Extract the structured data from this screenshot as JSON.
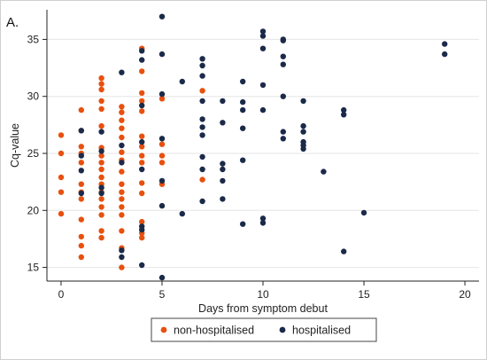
{
  "panel_label": "A.",
  "colors": {
    "non_hospitalised": "#e8500e",
    "hospitalised": "#1b2a49",
    "axis": "#222222",
    "grid": "#e6e6e6"
  },
  "chart_data": {
    "type": "scatter",
    "title": "",
    "xlabel": "Days from symptom debut",
    "ylabel": "Cq-value",
    "xlim": [
      -0.7,
      20.7
    ],
    "ylim": [
      13.8,
      37.6
    ],
    "xticks": [
      0,
      5,
      10,
      15,
      20
    ],
    "yticks": [
      15,
      20,
      25,
      30,
      35
    ],
    "grid": "horizontal",
    "legend_position": "bottom",
    "series": [
      {
        "name": "non-hospitalised",
        "color": "#e8500e",
        "points": [
          {
            "x": 0,
            "y": 26.6
          },
          {
            "x": 0,
            "y": 25.0
          },
          {
            "x": 0,
            "y": 22.9
          },
          {
            "x": 0,
            "y": 21.6
          },
          {
            "x": 0,
            "y": 19.7
          },
          {
            "x": 1,
            "y": 28.8
          },
          {
            "x": 1,
            "y": 27.0
          },
          {
            "x": 1,
            "y": 25.6
          },
          {
            "x": 1,
            "y": 25.0
          },
          {
            "x": 1,
            "y": 24.2
          },
          {
            "x": 1,
            "y": 22.3
          },
          {
            "x": 1,
            "y": 21.6
          },
          {
            "x": 1,
            "y": 21.0
          },
          {
            "x": 1,
            "y": 19.2
          },
          {
            "x": 1,
            "y": 17.7
          },
          {
            "x": 1,
            "y": 16.9
          },
          {
            "x": 1,
            "y": 15.9
          },
          {
            "x": 2,
            "y": 31.6
          },
          {
            "x": 2,
            "y": 31.1
          },
          {
            "x": 2,
            "y": 30.6
          },
          {
            "x": 2,
            "y": 29.6
          },
          {
            "x": 2,
            "y": 28.9
          },
          {
            "x": 2,
            "y": 27.4
          },
          {
            "x": 2,
            "y": 25.5
          },
          {
            "x": 2,
            "y": 24.8
          },
          {
            "x": 2,
            "y": 24.2
          },
          {
            "x": 2,
            "y": 23.6
          },
          {
            "x": 2,
            "y": 22.9
          },
          {
            "x": 2,
            "y": 22.3
          },
          {
            "x": 2,
            "y": 21.6
          },
          {
            "x": 2,
            "y": 21.0
          },
          {
            "x": 2,
            "y": 20.3
          },
          {
            "x": 2,
            "y": 19.6
          },
          {
            "x": 2,
            "y": 18.2
          },
          {
            "x": 2,
            "y": 17.6
          },
          {
            "x": 3,
            "y": 29.1
          },
          {
            "x": 3,
            "y": 28.6
          },
          {
            "x": 3,
            "y": 27.9
          },
          {
            "x": 3,
            "y": 27.2
          },
          {
            "x": 3,
            "y": 26.4
          },
          {
            "x": 3,
            "y": 25.1
          },
          {
            "x": 3,
            "y": 24.4
          },
          {
            "x": 3,
            "y": 23.4
          },
          {
            "x": 3,
            "y": 22.3
          },
          {
            "x": 3,
            "y": 21.6
          },
          {
            "x": 3,
            "y": 21.0
          },
          {
            "x": 3,
            "y": 20.3
          },
          {
            "x": 3,
            "y": 19.6
          },
          {
            "x": 3,
            "y": 18.2
          },
          {
            "x": 3,
            "y": 16.7
          },
          {
            "x": 3,
            "y": 15.0
          },
          {
            "x": 4,
            "y": 34.2
          },
          {
            "x": 4,
            "y": 32.2
          },
          {
            "x": 4,
            "y": 30.3
          },
          {
            "x": 4,
            "y": 29.6
          },
          {
            "x": 4,
            "y": 28.7
          },
          {
            "x": 4,
            "y": 26.5
          },
          {
            "x": 4,
            "y": 25.6
          },
          {
            "x": 4,
            "y": 24.8
          },
          {
            "x": 4,
            "y": 24.2
          },
          {
            "x": 4,
            "y": 22.4
          },
          {
            "x": 4,
            "y": 21.5
          },
          {
            "x": 4,
            "y": 19.0
          },
          {
            "x": 4,
            "y": 18.0
          },
          {
            "x": 4,
            "y": 17.6
          },
          {
            "x": 5,
            "y": 29.8
          },
          {
            "x": 5,
            "y": 25.8
          },
          {
            "x": 5,
            "y": 24.8
          },
          {
            "x": 5,
            "y": 24.2
          },
          {
            "x": 5,
            "y": 22.3
          },
          {
            "x": 7,
            "y": 30.5
          },
          {
            "x": 7,
            "y": 22.7
          }
        ]
      },
      {
        "name": "hospitalised",
        "color": "#1b2a49",
        "points": [
          {
            "x": 1,
            "y": 27.0
          },
          {
            "x": 1,
            "y": 24.8
          },
          {
            "x": 1,
            "y": 23.5
          },
          {
            "x": 1,
            "y": 21.5
          },
          {
            "x": 2,
            "y": 26.9
          },
          {
            "x": 2,
            "y": 25.2
          },
          {
            "x": 2,
            "y": 22.0
          },
          {
            "x": 2,
            "y": 21.5
          },
          {
            "x": 3,
            "y": 32.1
          },
          {
            "x": 3,
            "y": 25.7
          },
          {
            "x": 3,
            "y": 24.2
          },
          {
            "x": 3,
            "y": 16.5
          },
          {
            "x": 3,
            "y": 15.9
          },
          {
            "x": 4,
            "y": 34.0
          },
          {
            "x": 4,
            "y": 33.2
          },
          {
            "x": 4,
            "y": 29.2
          },
          {
            "x": 4,
            "y": 26.0
          },
          {
            "x": 4,
            "y": 23.6
          },
          {
            "x": 4,
            "y": 18.6
          },
          {
            "x": 4,
            "y": 18.3
          },
          {
            "x": 4,
            "y": 15.2
          },
          {
            "x": 5,
            "y": 37.0
          },
          {
            "x": 5,
            "y": 33.7
          },
          {
            "x": 5,
            "y": 30.2
          },
          {
            "x": 5,
            "y": 26.3
          },
          {
            "x": 5,
            "y": 22.6
          },
          {
            "x": 5,
            "y": 20.4
          },
          {
            "x": 5,
            "y": 14.1
          },
          {
            "x": 6,
            "y": 31.3
          },
          {
            "x": 6,
            "y": 19.7
          },
          {
            "x": 7,
            "y": 33.3
          },
          {
            "x": 7,
            "y": 32.7
          },
          {
            "x": 7,
            "y": 31.8
          },
          {
            "x": 7,
            "y": 29.6
          },
          {
            "x": 7,
            "y": 28.0
          },
          {
            "x": 7,
            "y": 27.3
          },
          {
            "x": 7,
            "y": 26.6
          },
          {
            "x": 7,
            "y": 24.7
          },
          {
            "x": 7,
            "y": 23.6
          },
          {
            "x": 7,
            "y": 20.8
          },
          {
            "x": 8,
            "y": 29.6
          },
          {
            "x": 8,
            "y": 27.7
          },
          {
            "x": 8,
            "y": 24.1
          },
          {
            "x": 8,
            "y": 23.6
          },
          {
            "x": 8,
            "y": 22.6
          },
          {
            "x": 8,
            "y": 21.0
          },
          {
            "x": 9,
            "y": 31.3
          },
          {
            "x": 9,
            "y": 29.5
          },
          {
            "x": 9,
            "y": 28.8
          },
          {
            "x": 9,
            "y": 27.2
          },
          {
            "x": 9,
            "y": 24.4
          },
          {
            "x": 9,
            "y": 18.8
          },
          {
            "x": 10,
            "y": 35.7
          },
          {
            "x": 10,
            "y": 35.3
          },
          {
            "x": 10,
            "y": 34.2
          },
          {
            "x": 10,
            "y": 31.0
          },
          {
            "x": 10,
            "y": 28.8
          },
          {
            "x": 10,
            "y": 19.3
          },
          {
            "x": 10,
            "y": 18.9
          },
          {
            "x": 11,
            "y": 35.0
          },
          {
            "x": 11,
            "y": 34.9
          },
          {
            "x": 11,
            "y": 33.5
          },
          {
            "x": 11,
            "y": 32.8
          },
          {
            "x": 11,
            "y": 30.0
          },
          {
            "x": 11,
            "y": 26.9
          },
          {
            "x": 11,
            "y": 26.3
          },
          {
            "x": 12,
            "y": 29.6
          },
          {
            "x": 12,
            "y": 27.4
          },
          {
            "x": 12,
            "y": 26.9
          },
          {
            "x": 12,
            "y": 26.0
          },
          {
            "x": 12,
            "y": 25.7
          },
          {
            "x": 12,
            "y": 25.4
          },
          {
            "x": 13,
            "y": 23.4
          },
          {
            "x": 14,
            "y": 28.8
          },
          {
            "x": 14,
            "y": 28.4
          },
          {
            "x": 14,
            "y": 16.4
          },
          {
            "x": 15,
            "y": 19.8
          },
          {
            "x": 19,
            "y": 34.6
          },
          {
            "x": 19,
            "y": 33.7
          }
        ]
      }
    ]
  }
}
